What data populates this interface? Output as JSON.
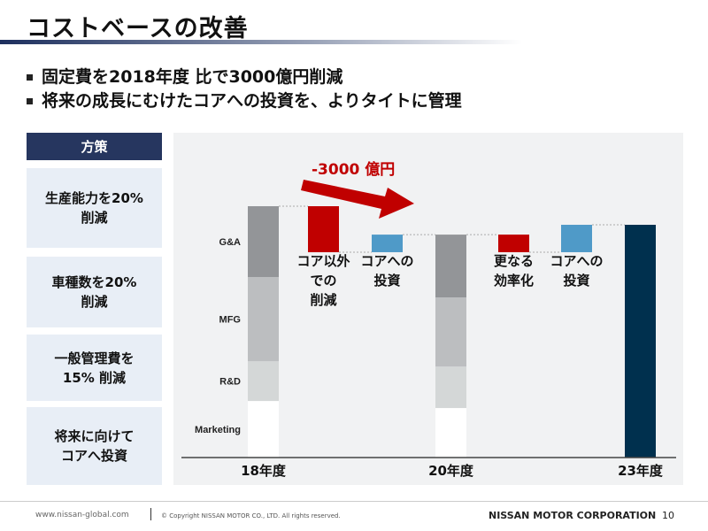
{
  "title": "コストベースの改善",
  "bullets": [
    "固定費を2018年度 比で3000億円削減",
    "将来の成長にむけたコアへの投資を、よりタイトに管理"
  ],
  "panel": {
    "header": "方策",
    "items": [
      [
        "生産能力を20%",
        "削減"
      ],
      [
        "車種数を20%",
        "削減"
      ],
      [
        "一般管理費を",
        "15% 削減"
      ],
      [
        "将来に向けて",
        "コアへ投資"
      ]
    ]
  },
  "chart_data": {
    "type": "bar",
    "subtype": "waterfall",
    "annotation": "-3000 億円",
    "segment_labels": [
      "G&A",
      "MFG",
      "R&D",
      "Marketing"
    ],
    "categories": [
      "18年度",
      "コア以外での削減",
      "コアへの投資",
      "20年度",
      "更なる効率化",
      "コアへの投資",
      "23年度"
    ],
    "category_labels": [
      [
        "18年度"
      ],
      [
        "コア以外",
        "での",
        "削減"
      ],
      [
        "コアへの",
        "投資"
      ],
      [
        "20年度"
      ],
      [
        "更なる",
        "効率化"
      ],
      [
        "コアへの",
        "投資"
      ],
      [
        "23年度"
      ]
    ],
    "stacked_bars": {
      "18年度": {
        "Marketing": 22.5,
        "R&D": 15.8,
        "MFG": 33.5,
        "G&A": 28.2
      },
      "20年度": {
        "Marketing": 19.7,
        "R&D": 16.5,
        "MFG": 27.5,
        "G&A": 25.0
      }
    },
    "deltas": {
      "コア以外での削減": -18.3,
      "コアへの投資_1": 7.0,
      "更なる効率化": -7.0,
      "コアへの投資_2": 10.9
    },
    "totals": {
      "18年度": 100,
      "20年度": 88.7,
      "23年度": 92.6
    },
    "unit_note": "index, 18年度 = 100 (values estimated, no axis printed)",
    "colors": {
      "G&A": "#939598",
      "MFG": "#bcbec0",
      "R&D": "#d4d7d7",
      "Marketing": "#ffffff",
      "reduction": "#c00000",
      "investment": "#4f9ac8",
      "total": "#00304e",
      "arrow": "#c00000"
    }
  },
  "footer": {
    "url": "www.nissan-global.com",
    "copyright": "© Copyright NISSAN MOTOR CO., LTD. All rights reserved.",
    "company": "NISSAN MOTOR CORPORATION",
    "page": "10"
  }
}
